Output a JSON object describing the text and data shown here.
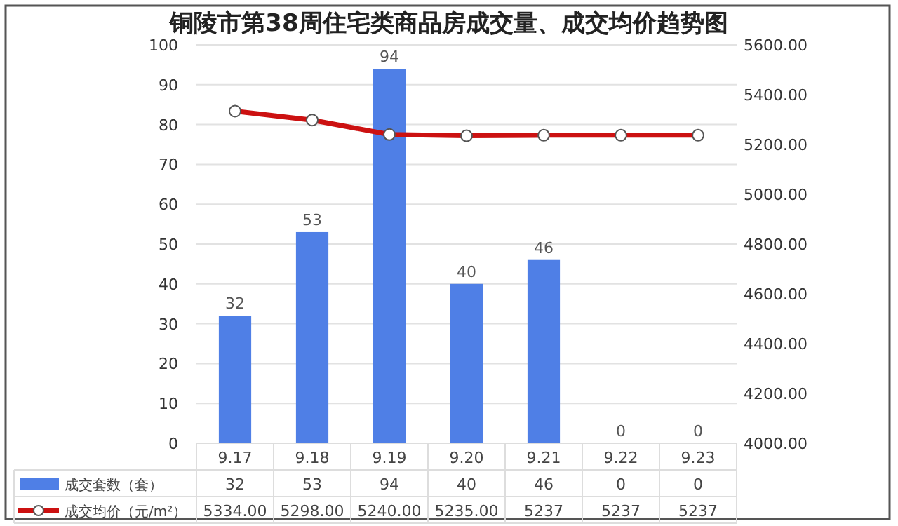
{
  "chart_data": {
    "type": "bar",
    "title": "铜陵市第38周住宅类商品房成交量、成交均价趋势图",
    "categories": [
      "9.17",
      "9.18",
      "9.19",
      "9.20",
      "9.21",
      "9.22",
      "9.23"
    ],
    "series": [
      {
        "name": "成交套数（套）",
        "color": "#4f7fe6",
        "values": [
          32,
          53,
          94,
          40,
          46,
          0,
          0
        ],
        "value_labels": [
          "32",
          "53",
          "94",
          "40",
          "46",
          "0",
          "0"
        ]
      },
      {
        "name": "成交均价（元/m²）",
        "type": "line",
        "axis": "y2",
        "color": "#cc1111",
        "marker": "circle",
        "values": [
          5334,
          5298,
          5240,
          5235,
          5237,
          5237,
          5237
        ],
        "value_labels": [
          "5334.00",
          "5298.00",
          "5240.00",
          "5235.00",
          "5237",
          "5237",
          "5237"
        ]
      }
    ],
    "ylim": [
      0,
      100
    ],
    "yticks": [
      0,
      10,
      20,
      30,
      40,
      50,
      60,
      70,
      80,
      90,
      100
    ],
    "y2lim": [
      4000,
      5600
    ],
    "y2ticks": [
      {
        "value": 4000,
        "label": "4000.00"
      },
      {
        "value": 4200,
        "label": "4200.00"
      },
      {
        "value": 4400,
        "label": "4400.00"
      },
      {
        "value": 4600,
        "label": "4600.00"
      },
      {
        "value": 4800,
        "label": "4800.00"
      },
      {
        "value": 5000,
        "label": "5000.00"
      },
      {
        "value": 5200,
        "label": "5200.00"
      },
      {
        "value": 5400,
        "label": "5400.00"
      },
      {
        "value": 5600,
        "label": "5600.00"
      }
    ],
    "grid": "y",
    "legend": "bottom"
  }
}
